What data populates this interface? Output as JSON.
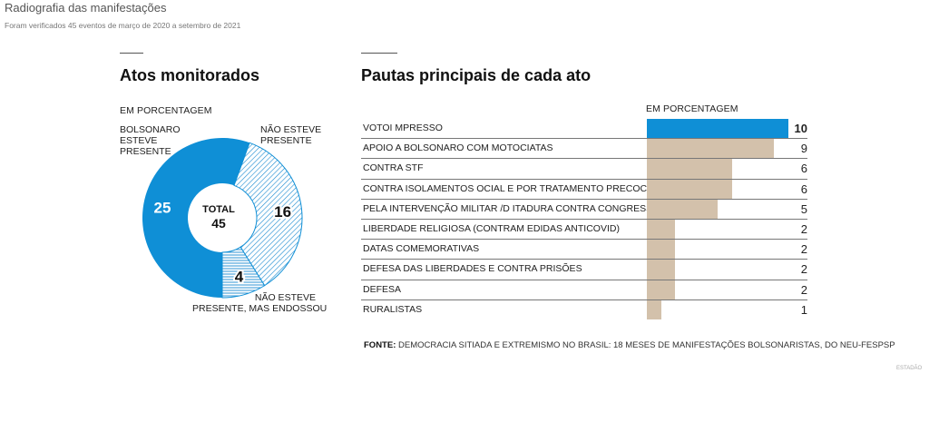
{
  "header": {
    "title": "Radiografia das manifestações",
    "subtitle": "Foram verificados 45 eventos de março de 2020 a setembro de 2021"
  },
  "left": {
    "heading": "Atos monitorados",
    "caption": "EM PORCENTAGEM",
    "center_label": "TOTAL",
    "center_value": "45"
  },
  "right": {
    "heading": "Pautas principais de cada ato",
    "caption": "EM PORCENTAGEM"
  },
  "source": {
    "label": "FONTE:",
    "text": "DEMOCRACIA SITIADA E EXTREMISMO NO BRASIL: 18 MESES DE MANIFESTAÇÕES BOLSONARISTAS, DO NEU-FESPSP"
  },
  "credit": "ESTADÃO",
  "colors": {
    "blue": "#0f8fd6",
    "tan": "#d3c1ab",
    "hatch": "#1a8ad1"
  },
  "chart_data": [
    {
      "type": "pie",
      "title": "Atos monitorados",
      "subtitle": "EM PORCENTAGEM",
      "total": 45,
      "slices": [
        {
          "name": "BOLSONARO ESTEVE PRESENTE",
          "label_lines": [
            "BOLSONARO",
            "ESTEVE",
            "PRESENTE"
          ],
          "value": 25,
          "style": "solid"
        },
        {
          "name": "NÃO ESTEVE PRESENTE",
          "label_lines": [
            "NÃO ESTEVE",
            "PRESENTE"
          ],
          "value": 16,
          "style": "hatch-dense"
        },
        {
          "name": "NÃO ESTEVE PRESENTE, MAS ENDOSSOU",
          "label_lines": [
            "NÃO ESTEVE",
            "PRESENTE, MAS ENDOSSOU"
          ],
          "value": 4,
          "style": "hatch-horizontal"
        }
      ]
    },
    {
      "type": "bar",
      "orientation": "horizontal",
      "title": "Pautas principais de cada ato",
      "subtitle": "EM PORCENTAGEM",
      "xlim": [
        0,
        10
      ],
      "categories": [
        "VOTOI MPRESSO",
        "APOIO A BOLSONARO COM MOTOCIATAS",
        "CONTRA STF",
        "CONTRA ISOLAMENTOS OCIAL E POR TRATAMENTO PRECOCE",
        "PELA INTERVENÇÃO MILITAR /D ITADURA CONTRA CONGRESSO",
        "LIBERDADE RELIGIOSA (CONTRAM EDIDAS ANTICOVID)",
        "DATAS COMEMORATIVAS",
        "DEFESA DAS LIBERDADES E CONTRA PRISÕES",
        "DEFESA",
        "RURALISTAS"
      ],
      "values": [
        10,
        9,
        6,
        6,
        5,
        2,
        2,
        2,
        2,
        1
      ],
      "highlight_index": 0
    }
  ]
}
